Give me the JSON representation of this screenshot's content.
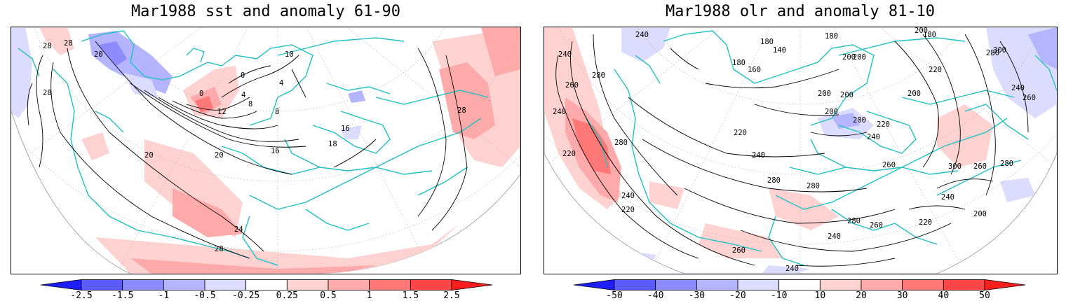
{
  "panels": [
    {
      "title": "Mar1988 sst and anomaly 61-90",
      "colorbar": {
        "levels": [
          "-2.5",
          "-1.5",
          "-1",
          "-0.5",
          "-0.25",
          "0.25",
          "0.5",
          "1",
          "1.5",
          "2.5"
        ],
        "colors": [
          "#1e1eff",
          "#5a5aff",
          "#8c8cff",
          "#b4b4ff",
          "#dcdcff",
          "#ffffff",
          "#ffd2d2",
          "#ffaaaa",
          "#ff7878",
          "#ff4646",
          "#ff1e1e"
        ]
      },
      "contour_labels": [
        "28",
        "28",
        "28",
        "20",
        "0",
        "4",
        "8",
        "12",
        "0",
        "4",
        "8",
        "16",
        "20",
        "16",
        "18",
        "10",
        "28",
        "20",
        "24",
        "28"
      ]
    },
    {
      "title": "Mar1988 olr and anomaly 81-10",
      "colorbar": {
        "levels": [
          "-50",
          "-40",
          "-30",
          "-20",
          "-10",
          "10",
          "20",
          "30",
          "40",
          "50"
        ],
        "colors": [
          "#1e1eff",
          "#5a5aff",
          "#8c8cff",
          "#b4b4ff",
          "#dcdcff",
          "#ffffff",
          "#ffd2d2",
          "#ffaaaa",
          "#ff7878",
          "#ff4646",
          "#ff1e1e"
        ]
      },
      "contour_labels": [
        "240",
        "240",
        "280",
        "260",
        "240",
        "220",
        "280",
        "240",
        "220",
        "180",
        "140",
        "160",
        "180",
        "180",
        "200",
        "200",
        "200",
        "180",
        "200",
        "220",
        "280",
        "300",
        "240",
        "260",
        "200",
        "200",
        "200",
        "200",
        "220",
        "240",
        "220",
        "240",
        "260",
        "300",
        "260",
        "280",
        "280",
        "280",
        "240",
        "200",
        "280",
        "260",
        "220",
        "240",
        "260",
        "240"
      ]
    }
  ]
}
